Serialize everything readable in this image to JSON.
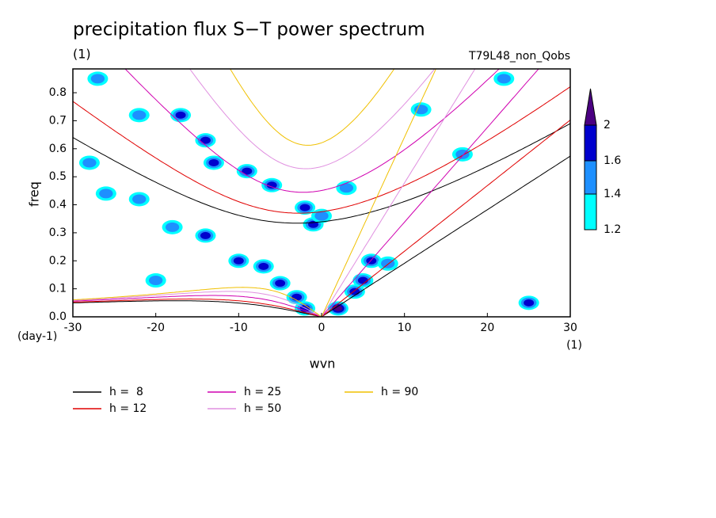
{
  "chart_data": {
    "type": "contour",
    "title": "precipitation flux S−T power spectrum",
    "subtitle": "(1)",
    "run_label": "T79L48_non_Qobs",
    "x_label": "wvn",
    "x_unit": "(1)",
    "y_label": "freq",
    "y_unit": "(day-1)",
    "xlim": [
      -30,
      30
    ],
    "xticks": [
      -30,
      -20,
      -10,
      0,
      10,
      20,
      30
    ],
    "ylim": [
      0,
      0.885
    ],
    "yticks": [
      {
        "value": 0,
        "label": "0.0"
      },
      0.1,
      0.2,
      0.3,
      0.4,
      0.5,
      0.6,
      0.7,
      0.8
    ],
    "levels": [
      1.2,
      1.4,
      1.6,
      2
    ],
    "colors": [
      "#00ffff",
      "#1e90ff",
      "#0000cd",
      "#4b0082"
    ],
    "field": {
      "wvn": [
        -27,
        -17,
        -14,
        -13,
        -9,
        -6,
        -2,
        -1,
        0,
        -14,
        -10,
        -7,
        -5,
        -3,
        -2,
        2,
        4,
        5,
        6,
        8,
        -26,
        -22,
        -18,
        -28,
        22,
        25,
        17,
        3,
        -20,
        12,
        -22
      ],
      "freq": [
        0.85,
        0.72,
        0.63,
        0.55,
        0.52,
        0.47,
        0.39,
        0.33,
        0.36,
        0.29,
        0.2,
        0.18,
        0.12,
        0.07,
        0.03,
        0.03,
        0.09,
        0.13,
        0.2,
        0.19,
        0.44,
        0.42,
        0.32,
        0.55,
        0.85,
        0.05,
        0.58,
        0.46,
        0.13,
        0.74,
        0.72
      ],
      "values": [
        1.4,
        1.8,
        1.8,
        1.6,
        1.8,
        1.6,
        1.6,
        1.8,
        1.4,
        1.6,
        1.6,
        1.6,
        1.6,
        1.8,
        1.8,
        2,
        1.8,
        1.8,
        1.6,
        1.4,
        1.4,
        1.4,
        1.4,
        1.4,
        1.4,
        1.6,
        1.4,
        1.4,
        1.4,
        1.4,
        1.4
      ]
    },
    "series": [
      {
        "name": "h =  8",
        "color": "#000000",
        "h": 8
      },
      {
        "name": "h = 12",
        "color": "#e00000",
        "h": 12
      },
      {
        "name": "h = 25",
        "color": "#d000b0",
        "h": 25
      },
      {
        "name": "h = 50",
        "color": "#e090e0",
        "h": 50
      },
      {
        "name": "h = 90",
        "color": "#f0c000",
        "h": 90
      }
    ]
  }
}
